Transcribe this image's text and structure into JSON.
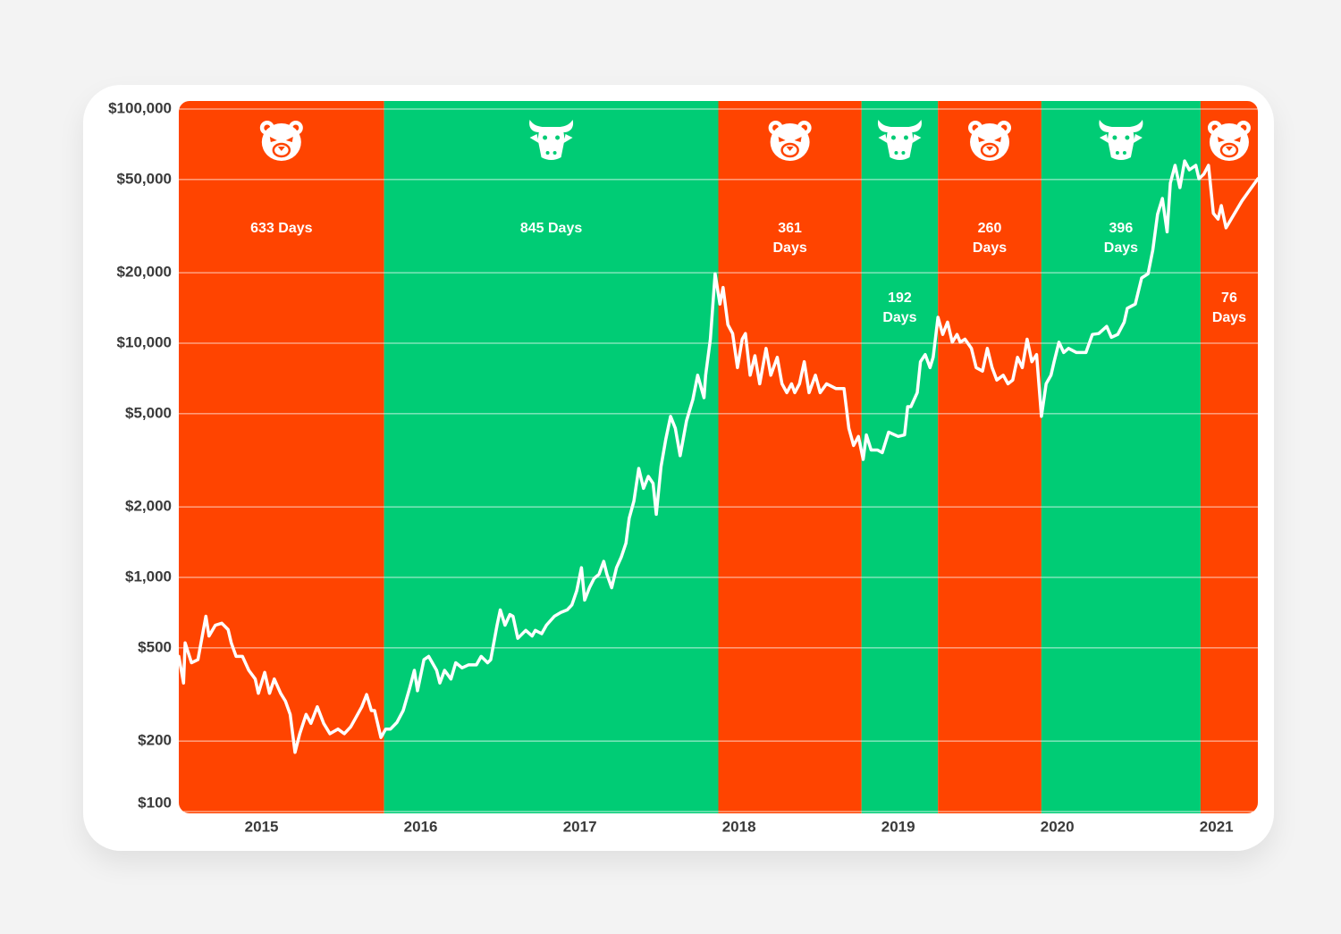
{
  "chart_data": {
    "type": "line",
    "log_scale": true,
    "grid": true,
    "line_color": "#ffffff",
    "colors": {
      "bear": "#ff4400",
      "bull": "#00cc75"
    },
    "xlim": [
      2014.48,
      2021.26
    ],
    "xticks": [
      2015,
      2016,
      2017,
      2018,
      2019,
      2020,
      2021
    ],
    "ylim": [
      100,
      100000
    ],
    "yticks": [
      {
        "value": 100,
        "label": "$100"
      },
      {
        "value": 200,
        "label": "$200"
      },
      {
        "value": 500,
        "label": "$500"
      },
      {
        "value": 1000,
        "label": "$1,000"
      },
      {
        "value": 2000,
        "label": "$2,000"
      },
      {
        "value": 5000,
        "label": "$5,000"
      },
      {
        "value": 10000,
        "label": "$10,000"
      },
      {
        "value": 20000,
        "label": "$20,000"
      },
      {
        "value": 50000,
        "label": "$50,000"
      },
      {
        "value": 100000,
        "label": "$100,000"
      }
    ],
    "periods": [
      {
        "market": "bear",
        "start": 2014.48,
        "end": 2015.77,
        "label": "633 Days"
      },
      {
        "market": "bull",
        "start": 2015.77,
        "end": 2017.87,
        "label": "845 Days"
      },
      {
        "market": "bear",
        "start": 2017.87,
        "end": 2018.77,
        "label": "361 Days"
      },
      {
        "market": "bull",
        "start": 2018.77,
        "end": 2019.25,
        "label": "192 Days"
      },
      {
        "market": "bear",
        "start": 2019.25,
        "end": 2019.9,
        "label": "260 Days"
      },
      {
        "market": "bull",
        "start": 2019.9,
        "end": 2020.9,
        "label": "396 Days"
      },
      {
        "market": "bear",
        "start": 2020.9,
        "end": 2021.26,
        "label": "76 Days"
      }
    ],
    "x": [
      2014.48,
      2014.51,
      2014.52,
      2014.56,
      2014.6,
      2014.65,
      2014.67,
      2014.71,
      2014.75,
      2014.79,
      2014.81,
      2014.84,
      2014.88,
      2014.92,
      2014.96,
      2014.98,
      2015.02,
      2015.05,
      2015.08,
      2015.12,
      2015.15,
      2015.18,
      2015.21,
      2015.24,
      2015.28,
      2015.31,
      2015.35,
      2015.39,
      2015.43,
      2015.48,
      2015.52,
      2015.56,
      2015.59,
      2015.63,
      2015.66,
      2015.69,
      2015.71,
      2015.75,
      2015.78,
      2015.81,
      2015.85,
      2015.89,
      2015.93,
      2015.96,
      2015.98,
      2016.02,
      2016.05,
      2016.1,
      2016.12,
      2016.15,
      2016.19,
      2016.22,
      2016.26,
      2016.3,
      2016.35,
      2016.38,
      2016.42,
      2016.44,
      2016.48,
      2016.5,
      2016.53,
      2016.56,
      2016.58,
      2016.61,
      2016.66,
      2016.7,
      2016.72,
      2016.76,
      2016.79,
      2016.84,
      2016.88,
      2016.92,
      2016.95,
      2016.98,
      2017.01,
      2017.03,
      2017.06,
      2017.09,
      2017.12,
      2017.15,
      2017.17,
      2017.2,
      2017.23,
      2017.26,
      2017.29,
      2017.31,
      2017.34,
      2017.37,
      2017.4,
      2017.43,
      2017.46,
      2017.48,
      2017.51,
      2017.54,
      2017.57,
      2017.6,
      2017.63,
      2017.67,
      2017.71,
      2017.74,
      2017.78,
      2017.79,
      2017.82,
      2017.85,
      2017.88,
      2017.9,
      2017.93,
      2017.96,
      2017.99,
      2018.02,
      2018.04,
      2018.07,
      2018.1,
      2018.13,
      2018.17,
      2018.2,
      2018.24,
      2018.27,
      2018.3,
      2018.33,
      2018.35,
      2018.38,
      2018.41,
      2018.44,
      2018.48,
      2018.51,
      2018.55,
      2018.61,
      2018.66,
      2018.69,
      2018.72,
      2018.75,
      2018.78,
      2018.8,
      2018.83,
      2018.87,
      2018.9,
      2018.94,
      2019.0,
      2019.04,
      2019.06,
      2019.08,
      2019.12,
      2019.14,
      2019.17,
      2019.2,
      2019.22,
      2019.25,
      2019.28,
      2019.31,
      2019.34,
      2019.37,
      2019.39,
      2019.42,
      2019.46,
      2019.49,
      2019.53,
      2019.56,
      2019.59,
      2019.62,
      2019.66,
      2019.69,
      2019.72,
      2019.75,
      2019.78,
      2019.81,
      2019.84,
      2019.87,
      2019.9,
      2019.93,
      2019.96,
      2019.98,
      2020.01,
      2020.04,
      2020.07,
      2020.12,
      2020.18,
      2020.22,
      2020.26,
      2020.31,
      2020.34,
      2020.38,
      2020.42,
      2020.44,
      2020.49,
      2020.53,
      2020.57,
      2020.6,
      2020.63,
      2020.66,
      2020.69,
      2020.71,
      2020.74,
      2020.77,
      2020.8,
      2020.83,
      2020.87,
      2020.89,
      2020.92,
      2020.95,
      2020.98,
      2021.01,
      2021.03,
      2021.06,
      2021.16,
      2021.26
    ],
    "values": [
      460,
      354,
      525,
      432,
      445,
      682,
      562,
      625,
      637,
      598,
      525,
      460,
      460,
      401,
      368,
      320,
      393,
      320,
      368,
      320,
      296,
      260,
      179,
      215,
      260,
      238,
      280,
      238,
      215,
      225,
      215,
      230,
      250,
      280,
      316,
      270,
      270,
      207,
      225,
      225,
      240,
      270,
      335,
      401,
      328,
      445,
      460,
      401,
      354,
      401,
      368,
      432,
      411,
      423,
      423,
      460,
      432,
      445,
      625,
      726,
      625,
      694,
      682,
      549,
      594,
      562,
      594,
      575,
      625,
      682,
      708,
      726,
      763,
      876,
      1100,
      800,
      903,
      990,
      1030,
      1170,
      1030,
      903,
      1100,
      1220,
      1400,
      1790,
      2120,
      2920,
      2400,
      2700,
      2520,
      1860,
      2970,
      3900,
      4870,
      4330,
      3310,
      4660,
      5750,
      7300,
      5850,
      7300,
      10400,
      19800,
      14700,
      17300,
      12000,
      11000,
      7870,
      10400,
      11000,
      7300,
      8840,
      6710,
      9500,
      7300,
      8700,
      6710,
      6150,
      6710,
      6150,
      6710,
      8340,
      6150,
      7300,
      6150,
      6710,
      6400,
      6400,
      4330,
      3660,
      4000,
      3190,
      4060,
      3500,
      3500,
      3410,
      4170,
      4000,
      4060,
      5360,
      5360,
      6150,
      8340,
      8940,
      7870,
      8700,
      12900,
      10900,
      12300,
      10100,
      10900,
      10100,
      10400,
      9500,
      7870,
      7600,
      9500,
      7870,
      6960,
      7300,
      6710,
      6960,
      8700,
      7870,
      10400,
      8340,
      8940,
      4870,
      6710,
      7300,
      8340,
      10100,
      9130,
      9500,
      9130,
      9130,
      10900,
      11000,
      11800,
      10600,
      10900,
      12300,
      14100,
      14700,
      19000,
      19800,
      25000,
      35500,
      41500,
      29900,
      48300,
      57500,
      46200,
      60000,
      55000,
      57500,
      50400,
      52700,
      57500,
      35900,
      33900,
      38700,
      31100,
      40500,
      50400
    ]
  }
}
